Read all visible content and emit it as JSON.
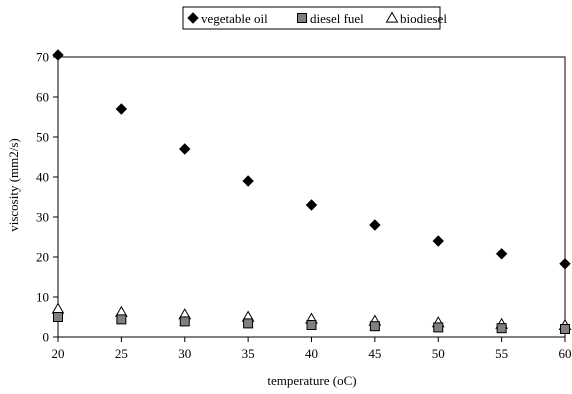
{
  "chart_data": {
    "type": "scatter",
    "title": "",
    "xlabel": "temperature (oC)",
    "ylabel": "viscosity (mm2/s)",
    "xlim": [
      20,
      60
    ],
    "ylim": [
      0,
      70
    ],
    "xticks": [
      20,
      25,
      30,
      35,
      40,
      45,
      50,
      55,
      60
    ],
    "yticks": [
      0,
      10,
      20,
      30,
      40,
      50,
      60,
      70
    ],
    "grid": false,
    "legend_position": "top",
    "x": [
      20,
      25,
      30,
      35,
      40,
      45,
      50,
      55,
      60
    ],
    "series": [
      {
        "name": "vegetable oil",
        "marker": "diamond",
        "color": "#000000",
        "values": [
          70.5,
          57,
          47,
          39,
          33,
          28,
          24,
          20.8,
          18.3
        ]
      },
      {
        "name": "diesel fuel",
        "marker": "square",
        "color": "#808080",
        "values": [
          5.0,
          4.4,
          3.9,
          3.4,
          3.0,
          2.7,
          2.4,
          2.2,
          2.0
        ]
      },
      {
        "name": "biodiesel",
        "marker": "triangle",
        "color": "#ffffff",
        "values": [
          7.0,
          6.2,
          5.6,
          5.0,
          4.5,
          4.0,
          3.6,
          3.2,
          2.9
        ]
      }
    ]
  }
}
